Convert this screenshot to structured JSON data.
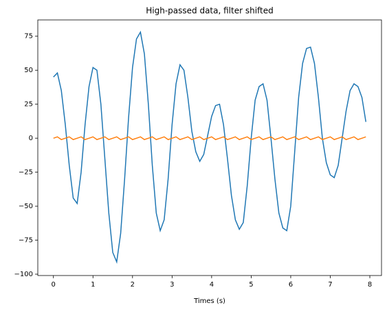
{
  "chart_data": {
    "type": "line",
    "title": "High-passed data, filter shifted",
    "x_label": "Times (s)",
    "x": [
      0,
      0.1,
      0.2,
      0.3,
      0.4,
      0.5,
      0.6,
      0.7,
      0.8,
      0.9,
      1,
      1.1,
      1.2,
      1.3,
      1.4,
      1.5,
      1.6,
      1.7,
      1.8,
      1.9,
      2,
      2.1,
      2.2,
      2.3,
      2.4,
      2.5,
      2.6,
      2.7,
      2.8,
      2.9,
      3,
      3.1,
      3.2,
      3.3,
      3.4,
      3.5,
      3.6,
      3.7,
      3.8,
      3.9,
      4,
      4.1,
      4.2,
      4.3,
      4.4,
      4.5,
      4.6,
      4.7,
      4.8,
      4.9,
      5,
      5.1,
      5.2,
      5.3,
      5.4,
      5.5,
      5.6,
      5.7,
      5.8,
      5.9,
      6,
      6.1,
      6.2,
      6.3,
      6.4,
      6.5,
      6.6,
      6.7,
      6.8,
      6.9,
      7,
      7.1,
      7.2,
      7.3,
      7.4,
      7.5,
      7.6,
      7.7,
      7.8,
      7.9
    ],
    "series": [
      {
        "color": "#1f77b4",
        "values": [
          45,
          48,
          35,
          10,
          -20,
          -44,
          -48,
          -25,
          10,
          38,
          52,
          50,
          25,
          -15,
          -55,
          -84,
          -91,
          -70,
          -30,
          15,
          52,
          73,
          78,
          62,
          25,
          -20,
          -55,
          -68,
          -60,
          -30,
          10,
          40,
          54,
          50,
          30,
          5,
          -10,
          -17,
          -12,
          2,
          16,
          24,
          25,
          10,
          -15,
          -42,
          -60,
          -67,
          -62,
          -35,
          0,
          28,
          38,
          40,
          28,
          0,
          -30,
          -55,
          -66,
          -68,
          -50,
          -10,
          30,
          55,
          66,
          67,
          55,
          30,
          0,
          -18,
          -27,
          -29,
          -20,
          0,
          20,
          35,
          40,
          38,
          30,
          12
        ]
      },
      {
        "color": "#ff7f0e",
        "values": [
          0,
          1,
          -1,
          0,
          1,
          -1,
          0,
          1,
          -1,
          0,
          1,
          -1,
          0,
          1,
          -1,
          0,
          1,
          -1,
          0,
          1,
          -1,
          0,
          1,
          -1,
          0,
          1,
          -1,
          0,
          1,
          -1,
          0,
          1,
          -1,
          0,
          1,
          -1,
          0,
          1,
          -1,
          0,
          1,
          -1,
          0,
          1,
          -1,
          0,
          1,
          -1,
          0,
          1,
          -1,
          0,
          1,
          -1,
          0,
          1,
          -1,
          0,
          1,
          -1,
          0,
          1,
          -1,
          0,
          1,
          -1,
          0,
          1,
          -1,
          0,
          1,
          -1,
          0,
          1,
          -1,
          0,
          1,
          -1,
          0,
          1
        ]
      }
    ],
    "xlim": [
      -0.395,
      8.295
    ],
    "xticks": [
      0,
      1,
      2,
      3,
      4,
      5,
      6,
      7,
      8
    ],
    "ylim": [
      -101,
      87
    ],
    "yticks": [
      {
        "value": -100,
        "label": "−100"
      },
      {
        "value": -75,
        "label": "−75"
      },
      {
        "value": -50,
        "label": "−50"
      },
      {
        "value": -25,
        "label": "−25"
      },
      0,
      25,
      50,
      75
    ]
  }
}
